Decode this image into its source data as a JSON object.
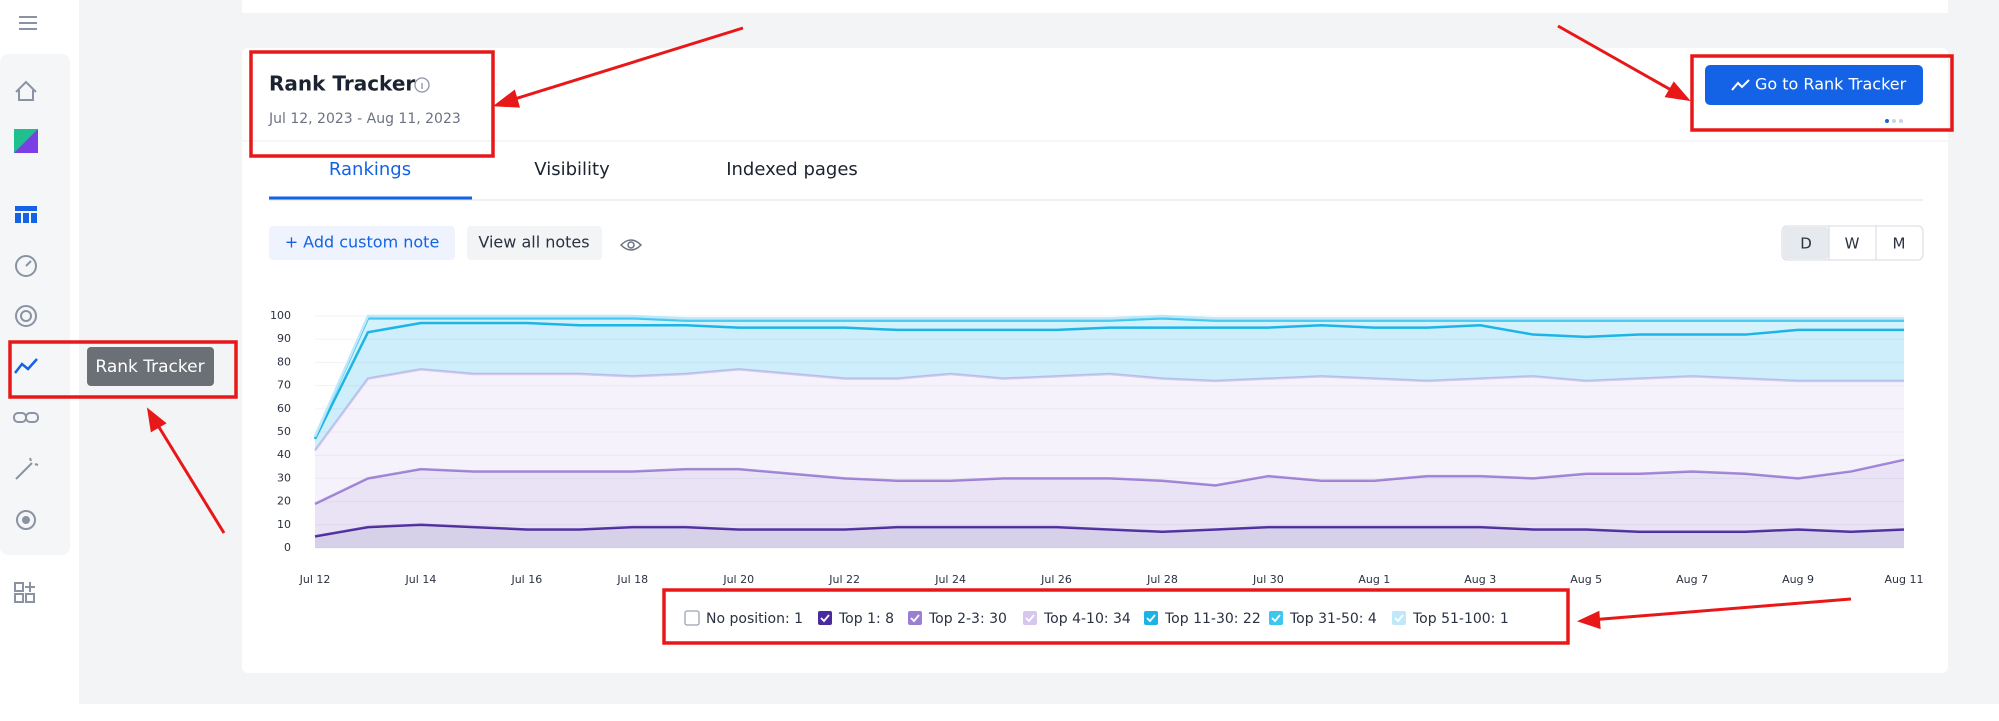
{
  "sidebar": {
    "tooltip": "Rank Tracker"
  },
  "card": {
    "title": "Rank Tracker",
    "date_range": "Jul 12, 2023 - Aug 11, 2023",
    "button": "Go to Rank Tracker"
  },
  "tabs": [
    "Rankings",
    "Visibility",
    "Indexed pages"
  ],
  "toolbar": {
    "add_note": "+ Add custom note",
    "view_notes": "View all notes"
  },
  "view_toggle": [
    "D",
    "W",
    "M"
  ],
  "chart_data": {
    "type": "stacked_area",
    "categories": [
      "Jul 12",
      null,
      "Jul 14",
      null,
      "Jul 16",
      null,
      "Jul 18",
      null,
      "Jul 20",
      null,
      "Jul 22",
      null,
      "Jul 24",
      null,
      "Jul 26",
      null,
      "Jul 28",
      null,
      "Jul 30",
      null,
      "Aug 1",
      null,
      "Aug 3",
      null,
      "Aug 5",
      null,
      "Aug 7",
      null,
      "Aug 9",
      null,
      "Aug 11"
    ],
    "ylim": [
      0,
      100
    ],
    "yticks": [
      0,
      10,
      20,
      30,
      40,
      50,
      60,
      70,
      80,
      90,
      100
    ],
    "series": [
      {
        "name": "No position: 1",
        "color": "#9aa3b0",
        "checked": false
      },
      {
        "name": "Top 1: 8",
        "color": "#4a2a9c",
        "checked": true,
        "values": [
          5,
          9,
          10,
          9,
          8,
          8,
          9,
          9,
          8,
          8,
          8,
          9,
          9,
          9,
          9,
          8,
          7,
          8,
          9,
          9,
          9,
          9,
          9,
          8,
          8,
          7,
          7,
          7,
          8,
          7,
          8
        ]
      },
      {
        "name": "Top 2-3: 30",
        "color": "#9a7fd3",
        "checked": true,
        "values": [
          14,
          21,
          24,
          24,
          25,
          25,
          24,
          25,
          26,
          24,
          22,
          20,
          20,
          21,
          21,
          22,
          22,
          19,
          22,
          20,
          20,
          22,
          22,
          22,
          24,
          25,
          26,
          25,
          22,
          26,
          30
        ]
      },
      {
        "name": "Top 4-10: 34",
        "color": "#d7c6ee",
        "checked": true,
        "values": [
          23,
          43,
          43,
          42,
          42,
          42,
          41,
          41,
          43,
          43,
          43,
          44,
          46,
          43,
          44,
          45,
          44,
          45,
          42,
          45,
          44,
          41,
          42,
          44,
          40,
          41,
          41,
          41,
          42,
          39,
          34
        ]
      },
      {
        "name": "Top 11-30: 22",
        "color": "#1ab3e6",
        "checked": true,
        "values": [
          5,
          20,
          20,
          22,
          22,
          21,
          22,
          21,
          18,
          20,
          22,
          21,
          19,
          21,
          20,
          20,
          22,
          23,
          22,
          22,
          22,
          23,
          23,
          18,
          19,
          19,
          18,
          19,
          22,
          22,
          22
        ]
      },
      {
        "name": "Top 31-50: 4",
        "color": "#3cc6f0",
        "checked": true,
        "values": [
          1,
          6,
          2,
          2,
          2,
          3,
          3,
          2,
          3,
          3,
          3,
          4,
          4,
          4,
          4,
          3,
          4,
          3,
          3,
          2,
          3,
          3,
          2,
          6,
          7,
          6,
          6,
          6,
          4,
          4,
          4
        ]
      },
      {
        "name": "Top 51-100: 1",
        "color": "#bfe9fa",
        "checked": true,
        "values": [
          0,
          1,
          1,
          1,
          1,
          1,
          1,
          1,
          1,
          1,
          1,
          1,
          1,
          1,
          1,
          1,
          1,
          1,
          1,
          1,
          1,
          1,
          1,
          1,
          1,
          1,
          1,
          1,
          1,
          1,
          1
        ]
      }
    ]
  }
}
